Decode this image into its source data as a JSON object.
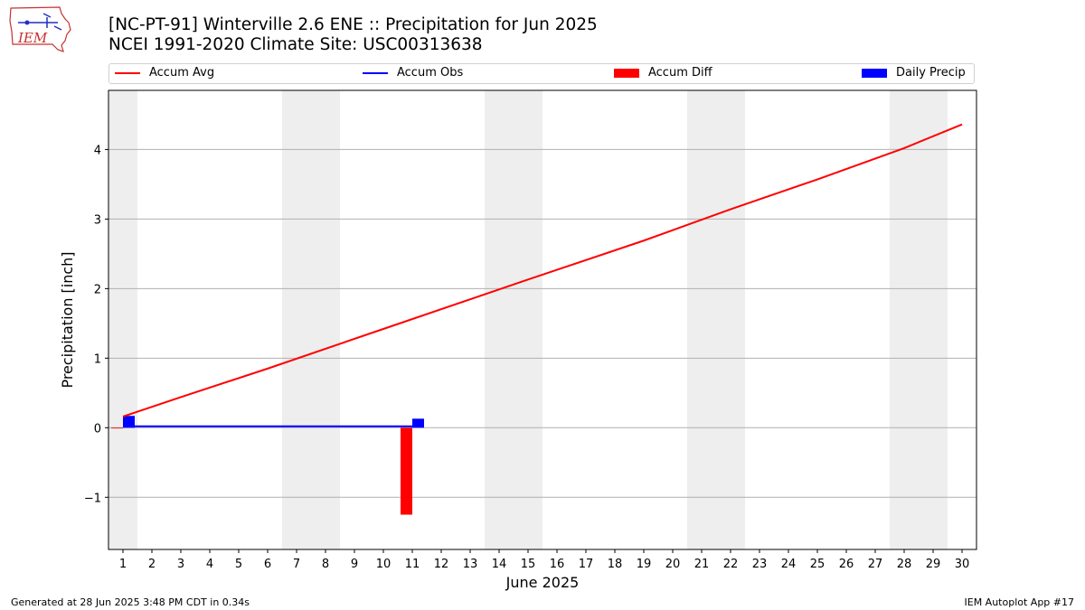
{
  "header": {
    "title_line1": "[NC-PT-91] Winterville 2.6 ENE :: Precipitation for Jun 2025",
    "title_line2": "NCEI 1991-2020 Climate Site: USC00313638",
    "logo_text": "IEM"
  },
  "legend": [
    {
      "label": "Accum Avg",
      "kind": "line",
      "color": "#ff0000"
    },
    {
      "label": "Accum Obs",
      "kind": "line",
      "color": "#0000ff"
    },
    {
      "label": "Accum Diff",
      "kind": "patch",
      "color": "#ff0000"
    },
    {
      "label": "Daily Precip",
      "kind": "patch",
      "color": "#0000ff"
    }
  ],
  "footer": {
    "left": "Generated at 28 Jun 2025 3:48 PM CDT in 0.34s",
    "right": "IEM Autoplot App #17"
  },
  "chart_data": {
    "type": "bar",
    "xlabel": "June 2025",
    "ylabel": "Precipitation [inch]",
    "xlim": [
      0.5,
      30.5
    ],
    "ylim": [
      -1.75,
      4.85
    ],
    "x_ticks": [
      1,
      2,
      3,
      4,
      5,
      6,
      7,
      8,
      9,
      10,
      11,
      12,
      13,
      14,
      15,
      16,
      17,
      18,
      19,
      20,
      21,
      22,
      23,
      24,
      25,
      26,
      27,
      28,
      29,
      30
    ],
    "y_ticks": [
      -1,
      0,
      1,
      2,
      3,
      4
    ],
    "y_tick_labels": [
      "−1",
      "0",
      "1",
      "2",
      "3",
      "4"
    ],
    "grid": "horizontal",
    "weekend_shading": [
      [
        0.5,
        1.5
      ],
      [
        6.5,
        8.5
      ],
      [
        13.5,
        15.5
      ],
      [
        20.5,
        22.5
      ],
      [
        27.5,
        29.5
      ]
    ],
    "shade_color": "#eeeeee",
    "series": [
      {
        "name": "Accum Avg",
        "type": "line",
        "color": "#ff0000",
        "x": [
          1,
          3,
          6,
          10,
          15,
          16,
          19,
          22,
          25,
          28,
          30
        ],
        "values": [
          0.16,
          0.44,
          0.85,
          1.42,
          2.13,
          2.27,
          2.69,
          3.14,
          3.57,
          4.02,
          4.36
        ]
      },
      {
        "name": "Accum Obs",
        "type": "line",
        "color": "#0000ff",
        "x": [
          1,
          10,
          11
        ],
        "values": [
          0.02,
          0.02,
          0.02
        ]
      },
      {
        "name": "Accum Diff",
        "type": "bar",
        "color": "#ff0000",
        "x": [
          1,
          11
        ],
        "values": [
          -0.01,
          -1.25
        ]
      },
      {
        "name": "Daily Precip",
        "type": "bar",
        "color": "#0000ff",
        "x": [
          1,
          11
        ],
        "values": [
          0.17,
          0.13
        ]
      }
    ]
  }
}
